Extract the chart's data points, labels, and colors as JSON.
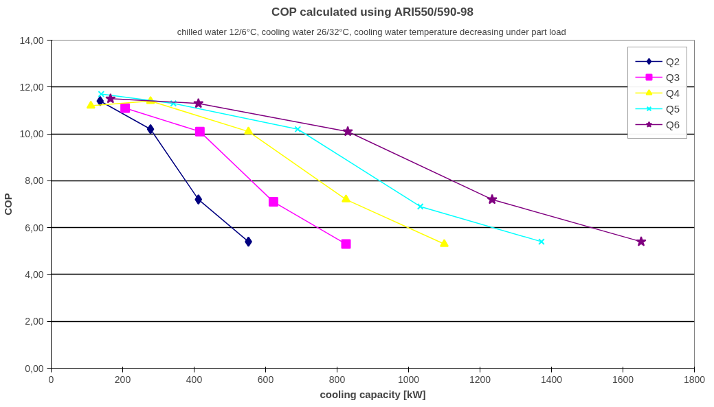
{
  "chart_data": {
    "type": "line",
    "title": "COP calculated using ARI550/590-98",
    "subtitle": "chilled water 12/6°C, cooling water 26/32°C, cooling water temperature  decreasing under part load",
    "xlabel": "cooling capacity [kW]",
    "ylabel": "COP",
    "xlim": [
      0,
      1800
    ],
    "xticks": [
      0,
      200,
      400,
      600,
      800,
      1000,
      1200,
      1400,
      1600,
      1800
    ],
    "ylim": [
      0,
      14
    ],
    "yticks": [
      {
        "value": 0,
        "label": "0,00"
      },
      {
        "value": 2,
        "label": "2,00"
      },
      {
        "value": 4,
        "label": "4,00"
      },
      {
        "value": 6,
        "label": "6,00"
      },
      {
        "value": 8,
        "label": "8,00"
      },
      {
        "value": 10,
        "label": "10,00"
      },
      {
        "value": 12,
        "label": "12,00"
      },
      {
        "value": 14,
        "label": "14,00"
      }
    ],
    "grid": "y",
    "legend": "top right",
    "line_style": "solid",
    "series": [
      {
        "name": "Q2",
        "color": "#000080",
        "marker": "diamond",
        "x": [
          137,
          278,
          412,
          552
        ],
        "values": [
          11.4,
          10.2,
          7.2,
          5.4
        ]
      },
      {
        "name": "Q3",
        "color": "#ff00ff",
        "marker": "square",
        "x": [
          207,
          416,
          622,
          825
        ],
        "values": [
          11.1,
          10.1,
          7.1,
          5.3
        ]
      },
      {
        "name": "Q4",
        "color": "#ffff00",
        "marker": "triangle",
        "x": [
          111,
          278,
          552,
          825,
          1100
        ],
        "values": [
          11.2,
          11.4,
          10.1,
          7.2,
          5.3
        ]
      },
      {
        "name": "Q5",
        "color": "#00ffff",
        "marker": "cross",
        "x": [
          140,
          342,
          690,
          1033,
          1372
        ],
        "values": [
          11.7,
          11.3,
          10.2,
          6.9,
          5.4
        ]
      },
      {
        "name": "Q6",
        "color": "#800080",
        "marker": "star",
        "x": [
          166,
          412,
          830,
          1234,
          1651
        ],
        "values": [
          11.5,
          11.3,
          10.1,
          7.2,
          5.4
        ]
      }
    ]
  }
}
